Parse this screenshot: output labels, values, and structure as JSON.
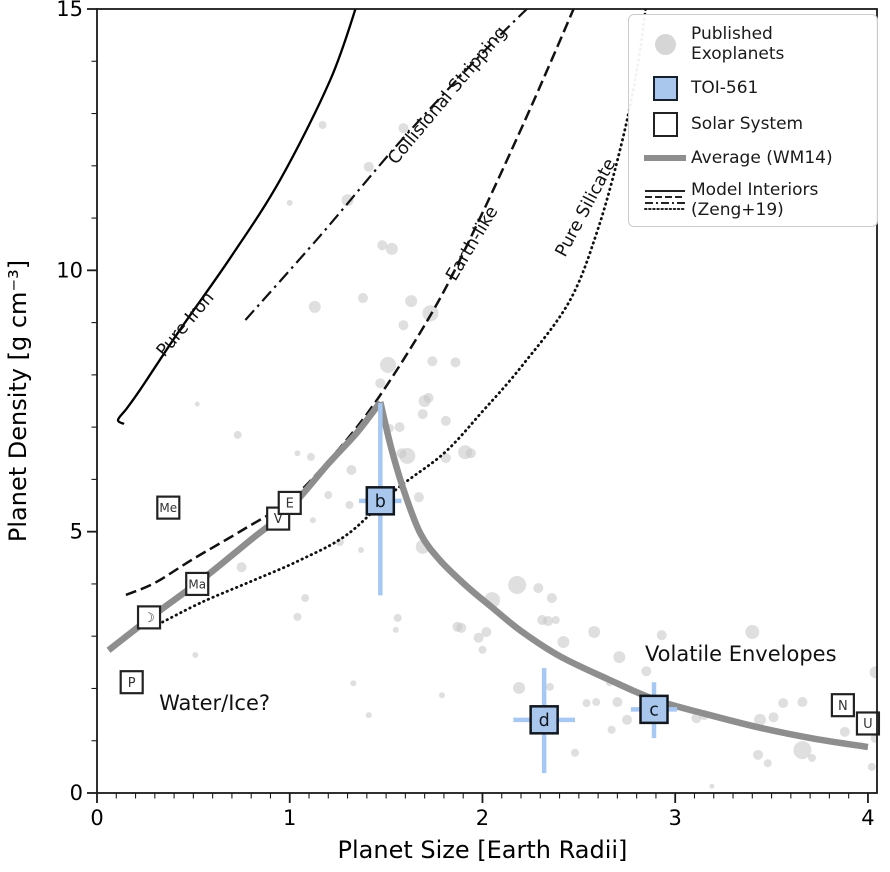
{
  "chart_data": {
    "type": "scatter",
    "xlabel": "Planet Size [Earth Radii]",
    "ylabel": "Planet Density [g cm⁻³]",
    "xlim": [
      0,
      4.047
    ],
    "ylim": [
      0,
      15
    ],
    "x_ticks": [
      0,
      1,
      2,
      3,
      4
    ],
    "y_ticks": [
      0,
      5,
      10,
      15
    ],
    "x_minor_step": 0.1,
    "y_minor_step": 1,
    "grid": false,
    "legend_position": "upper right",
    "exoplanets": {
      "name": "Published Exoplanets",
      "color": "#c4c4c4",
      "opacity": 0.55,
      "points": [
        [
          1.17,
          12.78,
          4
        ],
        [
          1.41,
          11.98,
          5
        ],
        [
          1.59,
          12.72,
          5
        ],
        [
          1.0,
          11.29,
          3
        ],
        [
          1.3,
          11.34,
          6
        ],
        [
          1.48,
          10.48,
          5
        ],
        [
          1.53,
          10.41,
          6
        ],
        [
          1.13,
          9.3,
          6
        ],
        [
          1.38,
          9.47,
          5
        ],
        [
          1.63,
          9.41,
          6
        ],
        [
          1.73,
          9.18,
          8
        ],
        [
          1.59,
          8.95,
          5
        ],
        [
          1.51,
          8.19,
          8
        ],
        [
          1.47,
          7.84,
          5
        ],
        [
          1.74,
          8.26,
          5
        ],
        [
          1.86,
          8.24,
          5
        ],
        [
          1.72,
          7.56,
          5
        ],
        [
          1.7,
          7.5,
          6
        ],
        [
          1.69,
          7.25,
          5
        ],
        [
          1.81,
          7.12,
          5
        ],
        [
          1.57,
          7.0,
          5
        ],
        [
          1.52,
          6.98,
          4
        ],
        [
          1.58,
          6.5,
          5
        ],
        [
          1.61,
          6.45,
          8
        ],
        [
          1.91,
          6.52,
          7
        ],
        [
          1.81,
          6.41,
          5
        ],
        [
          1.94,
          6.5,
          5
        ],
        [
          1.67,
          5.66,
          5
        ],
        [
          1.32,
          6.18,
          5
        ],
        [
          1.31,
          5.51,
          4
        ],
        [
          1.69,
          4.71,
          7
        ],
        [
          1.37,
          4.65,
          3
        ],
        [
          1.56,
          3.35,
          4
        ],
        [
          1.55,
          3.12,
          3
        ],
        [
          1.87,
          3.18,
          5
        ],
        [
          1.33,
          2.1,
          3
        ],
        [
          1.79,
          1.87,
          3
        ],
        [
          1.41,
          1.49,
          3
        ],
        [
          0.73,
          6.85,
          4
        ],
        [
          0.52,
          7.44,
          2.5
        ],
        [
          1.04,
          6.5,
          3
        ],
        [
          1.11,
          6.43,
          4
        ],
        [
          1.2,
          5.7,
          4
        ],
        [
          1.12,
          5.22,
          3
        ],
        [
          1.26,
          4.8,
          4
        ],
        [
          0.75,
          4.32,
          5
        ],
        [
          1.08,
          3.73,
          4
        ],
        [
          1.04,
          3.37,
          4
        ],
        [
          0.51,
          2.64,
          3
        ],
        [
          2.18,
          3.98,
          9
        ],
        [
          2.05,
          3.69,
          8
        ],
        [
          2.29,
          3.92,
          5
        ],
        [
          2.36,
          3.73,
          5
        ],
        [
          1.89,
          3.16,
          5
        ],
        [
          1.98,
          2.97,
          5
        ],
        [
          2.02,
          3.08,
          5
        ],
        [
          2.0,
          2.74,
          4
        ],
        [
          2.31,
          3.31,
          5
        ],
        [
          2.34,
          3.29,
          5
        ],
        [
          2.38,
          3.31,
          4
        ],
        [
          2.42,
          2.89,
          6
        ],
        [
          2.58,
          3.08,
          6
        ],
        [
          2.71,
          2.6,
          6
        ],
        [
          2.66,
          2.12,
          4
        ],
        [
          2.85,
          2.33,
          5
        ],
        [
          2.93,
          3.02,
          5
        ],
        [
          3.4,
          3.08,
          7
        ],
        [
          2.19,
          2.01,
          6
        ],
        [
          2.35,
          2.03,
          4
        ],
        [
          2.54,
          1.72,
          4
        ],
        [
          2.59,
          1.74,
          4
        ],
        [
          2.7,
          1.74,
          5
        ],
        [
          2.75,
          1.4,
          5
        ],
        [
          2.67,
          1.21,
          4
        ],
        [
          2.48,
          0.77,
          4
        ],
        [
          3.11,
          1.43,
          5
        ],
        [
          3.15,
          1.49,
          5
        ],
        [
          3.56,
          1.72,
          5
        ],
        [
          3.66,
          1.74,
          5
        ],
        [
          3.44,
          1.4,
          6
        ],
        [
          3.51,
          1.45,
          5
        ],
        [
          3.88,
          1.17,
          5
        ],
        [
          3.66,
          0.82,
          9
        ],
        [
          3.71,
          0.67,
          4
        ],
        [
          3.43,
          0.73,
          5
        ],
        [
          3.48,
          0.57,
          4
        ],
        [
          4.02,
          0.5,
          4
        ],
        [
          4.04,
          1.05,
          5
        ],
        [
          3.19,
          0.13,
          2.5
        ],
        [
          4.04,
          2.31,
          6
        ]
      ]
    },
    "toi561": {
      "name": "TOI-561",
      "fill": "#a9c7ed",
      "border": "#10171f",
      "errorbar_color": "#a6c8f2",
      "planets": [
        {
          "label": "b",
          "x": 1.47,
          "y": 5.59,
          "xerr": 0.11,
          "yerr_lo": 1.81,
          "yerr_hi": 1.87
        },
        {
          "label": "d",
          "x": 2.32,
          "y": 1.4,
          "xerr": 0.16,
          "yerr_lo": 1.02,
          "yerr_hi": 0.99
        },
        {
          "label": "c",
          "x": 2.89,
          "y": 1.6,
          "xerr": 0.12,
          "yerr_lo": 0.55,
          "yerr_hi": 0.52
        }
      ]
    },
    "solar_system": [
      {
        "label": "Me",
        "x": 0.37,
        "y": 5.46
      },
      {
        "label": "V",
        "x": 0.94,
        "y": 5.25
      },
      {
        "label": "E",
        "x": 1.0,
        "y": 5.55
      },
      {
        "label": "Ma",
        "x": 0.52,
        "y": 4.0
      },
      {
        "label": "☽",
        "x": 0.27,
        "y": 3.36
      },
      {
        "label": "P",
        "x": 0.18,
        "y": 2.12
      },
      {
        "label": "N",
        "x": 3.87,
        "y": 1.68
      },
      {
        "label": "U",
        "x": 4.0,
        "y": 1.33
      }
    ],
    "curves": [
      {
        "name": "pure-iron",
        "label": "Pure Iron",
        "style": "solid",
        "color": "#000000",
        "label_x": 0.48,
        "label_y": 8.9,
        "label_rot": -50,
        "points": [
          [
            0.14,
            7.06
          ],
          [
            0.109,
            7.14
          ],
          [
            0.155,
            7.36
          ],
          [
            0.23,
            7.75
          ],
          [
            0.43,
            8.86
          ],
          [
            0.69,
            10.23
          ],
          [
            0.95,
            11.73
          ],
          [
            1.21,
            13.64
          ],
          [
            1.35,
            15.1
          ]
        ]
      },
      {
        "name": "collisional-stripping",
        "label": "Collisional Stripping",
        "style": "dashdot",
        "color": "#111111",
        "label_x": 1.84,
        "label_y": 13.28,
        "label_rot": -50,
        "points": [
          [
            0.77,
            9.05
          ],
          [
            1.16,
            10.67
          ],
          [
            1.57,
            12.45
          ],
          [
            1.99,
            14.12
          ],
          [
            2.3,
            15.25
          ]
        ]
      },
      {
        "name": "earth-like",
        "label": "Earth-like",
        "style": "dashed",
        "color": "#111111",
        "label_x": 1.97,
        "label_y": 10.46,
        "label_rot": -59,
        "points": [
          [
            0.15,
            3.79
          ],
          [
            0.3,
            4.02
          ],
          [
            0.5,
            4.48
          ],
          [
            0.75,
            5.02
          ],
          [
            1.0,
            5.6
          ],
          [
            1.2,
            6.35
          ],
          [
            1.4,
            7.25
          ],
          [
            1.6,
            8.35
          ],
          [
            1.8,
            9.6
          ],
          [
            2.0,
            11.1
          ],
          [
            2.2,
            12.7
          ],
          [
            2.35,
            13.95
          ],
          [
            2.49,
            15.15
          ]
        ]
      },
      {
        "name": "pure-silicate",
        "label": "Pure Silicate",
        "style": "dotted",
        "color": "#111111",
        "label_x": 2.56,
        "label_y": 11.15,
        "label_rot": -62,
        "points": [
          [
            0.34,
            3.27
          ],
          [
            0.55,
            3.66
          ],
          [
            0.8,
            4.05
          ],
          [
            1.05,
            4.45
          ],
          [
            1.3,
            4.95
          ],
          [
            1.55,
            5.8
          ],
          [
            1.8,
            6.5
          ],
          [
            2.0,
            7.3
          ],
          [
            2.2,
            8.15
          ],
          [
            2.45,
            9.4
          ],
          [
            2.6,
            10.8
          ],
          [
            2.72,
            12.4
          ],
          [
            2.8,
            13.8
          ],
          [
            2.85,
            15.1
          ]
        ]
      }
    ],
    "average": {
      "name": "average-wm14",
      "label": "Average (WM14)",
      "color": "#8e8e8e",
      "width": 6.5,
      "rise": [
        [
          0.06,
          2.73
        ],
        [
          0.3,
          3.42
        ],
        [
          0.55,
          4.1
        ],
        [
          0.8,
          4.85
        ],
        [
          1.0,
          5.45
        ],
        [
          1.2,
          6.3
        ],
        [
          1.35,
          6.9
        ],
        [
          1.47,
          7.48
        ]
      ],
      "fall": [
        [
          1.47,
          7.48
        ],
        [
          1.53,
          6.55
        ],
        [
          1.6,
          5.7
        ],
        [
          1.68,
          4.95
        ],
        [
          1.78,
          4.45
        ],
        [
          1.92,
          3.95
        ],
        [
          2.05,
          3.55
        ],
        [
          2.2,
          3.1
        ],
        [
          2.4,
          2.62
        ],
        [
          2.65,
          2.18
        ],
        [
          2.9,
          1.78
        ],
        [
          3.15,
          1.52
        ],
        [
          3.45,
          1.24
        ],
        [
          3.72,
          1.04
        ],
        [
          4.0,
          0.88
        ]
      ]
    },
    "annotations": [
      {
        "name": "water-ice",
        "text": "Water/Ice?",
        "x": 0.61,
        "y": 1.72,
        "size": 21,
        "rot": 0
      },
      {
        "name": "volatile-envelopes",
        "text": "Volatile Envelopes",
        "x": 3.34,
        "y": 2.66,
        "size": 21,
        "rot": 0
      }
    ],
    "legend": {
      "items": [
        {
          "key": "circle",
          "label": "Published\nExoplanets"
        },
        {
          "key": "toi",
          "label": "TOI-561"
        },
        {
          "key": "solar",
          "label": "Solar System"
        },
        {
          "key": "average",
          "label": "Average (WM14)"
        },
        {
          "key": "models",
          "label": "Model Interiors\n(Zeng+19)"
        }
      ]
    }
  }
}
